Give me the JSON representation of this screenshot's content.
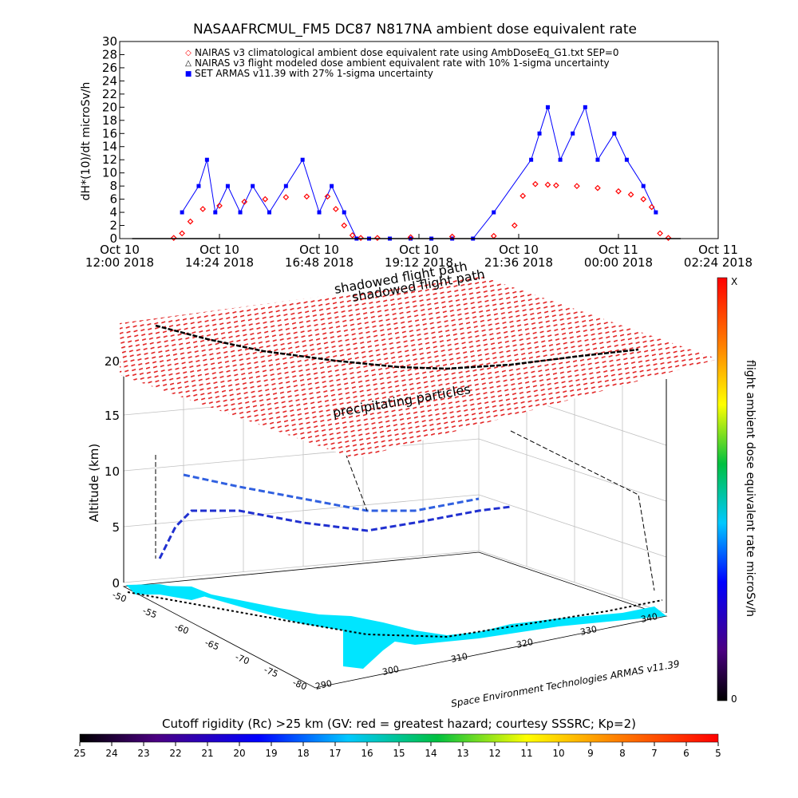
{
  "chart_data": [
    {
      "type": "scatter",
      "title": "NASAAFRCMUL_FM5 DC87 N817NA ambient dose equivalent rate",
      "ylabel": "dH*(10)/dt microSv/h",
      "ylim": [
        0,
        30
      ],
      "y_ticks": [
        "0",
        "2",
        "4",
        "6",
        "8",
        "10",
        "12",
        "14",
        "16",
        "18",
        "20",
        "22",
        "24",
        "26",
        "28",
        "30"
      ],
      "x_ticks": [
        {
          "line1": "Oct 10",
          "line2": "12:00 2018"
        },
        {
          "line1": "Oct 10",
          "line2": "14:24 2018"
        },
        {
          "line1": "Oct 10",
          "line2": "16:48 2018"
        },
        {
          "line1": "Oct 10",
          "line2": "19:12 2018"
        },
        {
          "line1": "Oct 10",
          "line2": "21:36 2018"
        },
        {
          "line1": "Oct 11",
          "line2": "00:00 2018"
        },
        {
          "line1": "Oct 11",
          "line2": "02:24 2018"
        }
      ],
      "xlim_hours": [
        12.0,
        26.4
      ],
      "legend": [
        {
          "marker": "◇",
          "label": "NAIRAS v3 climatological ambient dose equivalent rate using AmbDoseEq_G1.txt SEP=0",
          "color": "#ff0000"
        },
        {
          "marker": "△",
          "label": "NAIRAS v3 flight modeled dose ambient equivalent rate with 10% 1-sigma uncertainty",
          "color": "#000000"
        },
        {
          "marker": "■",
          "label": "SET ARMAS v11.39 with 27% 1-sigma uncertainty",
          "color": "#0000ff"
        }
      ],
      "legend_position": "top-left",
      "series": [
        {
          "name": "NAIRAS v3 climatological ambient dose equivalent rate using AmbDoseEq_G1.txt SEP=0",
          "color": "#ff0000",
          "x": [
            13.3,
            13.5,
            13.7,
            14.0,
            14.4,
            15.0,
            15.5,
            16.0,
            16.5,
            17.0,
            17.2,
            17.4,
            17.6,
            17.8,
            18.2,
            19.0,
            20.0,
            21.0,
            21.5,
            21.7,
            22.0,
            22.3,
            22.5,
            23.0,
            23.5,
            24.0,
            24.3,
            24.6,
            24.8,
            25.0,
            25.2
          ],
          "y": [
            0.1,
            0.8,
            2.6,
            4.5,
            5.0,
            5.6,
            6.0,
            6.3,
            6.4,
            6.4,
            4.5,
            2.0,
            0.5,
            0.1,
            0.1,
            0.2,
            0.3,
            0.4,
            2.0,
            6.5,
            8.3,
            8.2,
            8.1,
            8.0,
            7.7,
            7.2,
            6.7,
            6.0,
            4.8,
            0.8,
            0.1
          ]
        },
        {
          "name": "SET ARMAS v11.39 with 27% 1-sigma uncertainty",
          "color": "#0000ff",
          "x": [
            13.5,
            13.9,
            14.1,
            14.3,
            14.6,
            14.9,
            15.2,
            15.6,
            16.0,
            16.4,
            16.8,
            17.1,
            17.4,
            17.7,
            18.0,
            18.5,
            19.0,
            19.5,
            20.0,
            20.5,
            21.0,
            21.9,
            22.1,
            22.3,
            22.6,
            22.9,
            23.2,
            23.5,
            23.9,
            24.2,
            24.6,
            24.9
          ],
          "y": [
            4,
            8,
            12,
            4,
            8,
            4,
            8,
            4,
            8,
            12,
            4,
            8,
            4,
            0,
            0,
            0,
            0,
            0,
            0,
            0,
            4,
            12,
            16,
            20,
            12,
            16,
            20,
            12,
            16,
            12,
            8,
            4
          ]
        },
        {
          "name": "NAIRAS v3 flight modeled dose ambient equivalent rate with 10% 1-sigma uncertainty",
          "color": "#000000",
          "x": [
            12.3,
            14.0,
            16.0,
            18.0,
            20.0,
            22.0,
            24.0,
            25.5
          ],
          "y": [
            0,
            0,
            0,
            0,
            0,
            0,
            0,
            0
          ]
        }
      ]
    },
    {
      "type": "scatter",
      "title": "",
      "ylabel": "Altitude (km)",
      "z_ticks": [
        "0",
        "5",
        "10",
        "15",
        "20"
      ],
      "lat_ticks": [
        "-50",
        "-55",
        "-60",
        "-65",
        "-70",
        "-75",
        "-80"
      ],
      "lon_ticks": [
        "290",
        "300",
        "310",
        "320",
        "330",
        "340"
      ],
      "annotations": [
        "shadowed flight path",
        "shadowed flight path",
        "precipitating particles",
        "Space Environment Technologies ARMAS v11.39"
      ],
      "colorbar_label": "flight ambient dose equivalent rate microSv/h",
      "colorbar_top": "X",
      "colorbar_bottom": "0"
    },
    {
      "type": "heatmap",
      "title": "Cutoff rigidity (Rc) >25 km (GV: red = greatest hazard; courtesy SSSRC; Kp=2)",
      "colorbar_ticks": [
        "25",
        "24",
        "23",
        "22",
        "21",
        "20",
        "19",
        "18",
        "17",
        "16",
        "15",
        "14",
        "13",
        "12",
        "11",
        "10",
        "9",
        "8",
        "7",
        "6",
        "5"
      ]
    }
  ]
}
